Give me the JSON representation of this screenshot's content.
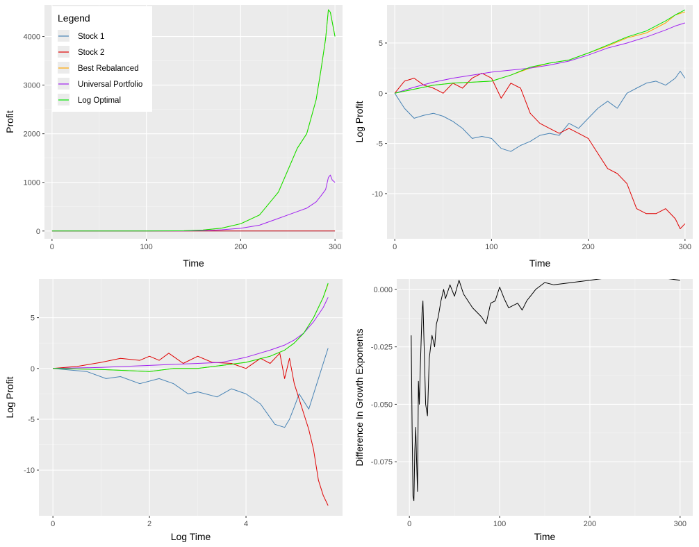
{
  "chart_data": [
    {
      "type": "line",
      "xlabel": "Time",
      "ylabel": "Profit",
      "xlim": [
        -8,
        308
      ],
      "ylim": [
        -160,
        4650
      ],
      "xticks": [
        0,
        100,
        200,
        300
      ],
      "yticks": [
        0,
        1000,
        2000,
        3000,
        4000
      ],
      "grid": true,
      "legend_title": "Legend",
      "legend_position": "top-left",
      "series": [
        {
          "name": "Stock 1",
          "color": "#4682b4",
          "x": [
            0,
            100,
            130,
            150,
            200,
            230,
            260,
            290,
            300
          ],
          "y": [
            0,
            0,
            0,
            0,
            0,
            0,
            0,
            0,
            0
          ]
        },
        {
          "name": "Stock 2",
          "color": "#e00000",
          "x": [
            0,
            100,
            150,
            200,
            250,
            300
          ],
          "y": [
            0,
            0,
            0,
            0,
            0,
            0
          ]
        },
        {
          "name": "Best Rebalanced",
          "color": "#ffa500",
          "x": [
            0,
            100,
            140,
            160,
            180,
            200,
            220,
            240,
            250,
            260,
            270,
            280,
            285,
            290,
            293,
            295,
            297,
            300
          ],
          "y": [
            0,
            0,
            5,
            20,
            60,
            150,
            330,
            800,
            1250,
            1700,
            2000,
            2700,
            3300,
            3950,
            4550,
            4500,
            4300,
            4000
          ]
        },
        {
          "name": "Universal Portfolio",
          "color": "#a020f0",
          "x": [
            0,
            100,
            140,
            160,
            180,
            200,
            220,
            240,
            250,
            260,
            270,
            280,
            285,
            290,
            293,
            295,
            297,
            300
          ],
          "y": [
            0,
            0,
            2,
            8,
            25,
            55,
            120,
            260,
            330,
            400,
            470,
            600,
            720,
            850,
            1100,
            1150,
            1050,
            1000
          ]
        },
        {
          "name": "Log Optimal",
          "color": "#00e600",
          "x": [
            0,
            100,
            140,
            160,
            180,
            200,
            220,
            240,
            250,
            260,
            270,
            280,
            285,
            290,
            293,
            295,
            297,
            300
          ],
          "y": [
            0,
            0,
            5,
            20,
            60,
            150,
            330,
            800,
            1250,
            1700,
            2000,
            2700,
            3300,
            3950,
            4550,
            4500,
            4300,
            4000
          ]
        }
      ]
    },
    {
      "type": "line",
      "xlabel": "Time",
      "ylabel": "Log Profit",
      "xlim": [
        -8,
        308
      ],
      "ylim": [
        -14.5,
        8.8
      ],
      "xticks": [
        0,
        100,
        200,
        300
      ],
      "yticks": [
        -10,
        -5,
        0,
        5
      ],
      "grid": true,
      "series": [
        {
          "color": "#4682b4",
          "x": [
            0,
            10,
            20,
            30,
            40,
            50,
            60,
            70,
            80,
            90,
            100,
            110,
            120,
            130,
            140,
            150,
            160,
            170,
            180,
            190,
            200,
            210,
            220,
            230,
            240,
            250,
            260,
            270,
            280,
            290,
            295,
            300
          ],
          "y": [
            0,
            -1.5,
            -2.5,
            -2.2,
            -2,
            -2.3,
            -2.8,
            -3.5,
            -4.5,
            -4.3,
            -4.5,
            -5.5,
            -5.8,
            -5.2,
            -4.8,
            -4.2,
            -4,
            -4.2,
            -3,
            -3.5,
            -2.5,
            -1.5,
            -0.8,
            -1.5,
            0,
            0.5,
            1,
            1.2,
            0.8,
            1.5,
            2.2,
            1.5
          ]
        },
        {
          "color": "#e00000",
          "x": [
            0,
            10,
            20,
            30,
            40,
            50,
            60,
            70,
            80,
            90,
            100,
            110,
            120,
            130,
            140,
            150,
            160,
            170,
            180,
            190,
            200,
            210,
            220,
            230,
            240,
            250,
            260,
            270,
            280,
            290,
            295,
            300
          ],
          "y": [
            0,
            1.2,
            1.5,
            0.8,
            0.5,
            0,
            1,
            0.5,
            1.5,
            2,
            1.5,
            -0.5,
            1,
            0.5,
            -2,
            -3,
            -3.5,
            -4,
            -3.5,
            -4,
            -4.5,
            -6,
            -7.5,
            -8,
            -9,
            -11.5,
            -12,
            -12,
            -11.5,
            -12.5,
            -13.5,
            -13
          ]
        },
        {
          "color": "#ffa500",
          "x": [
            0,
            20,
            40,
            60,
            80,
            100,
            120,
            140,
            160,
            180,
            200,
            220,
            240,
            260,
            280,
            290,
            300
          ],
          "y": [
            0,
            0.4,
            0.8,
            1,
            1.1,
            1.2,
            1.8,
            2.5,
            3,
            3.3,
            4,
            4.7,
            5.5,
            6,
            7,
            7.8,
            8.1
          ]
        },
        {
          "color": "#a020f0",
          "x": [
            0,
            20,
            40,
            60,
            80,
            100,
            120,
            140,
            160,
            180,
            200,
            220,
            240,
            260,
            280,
            290,
            300
          ],
          "y": [
            0,
            0.6,
            1.1,
            1.5,
            1.8,
            2.1,
            2.3,
            2.5,
            2.8,
            3.2,
            3.8,
            4.5,
            5,
            5.6,
            6.3,
            6.7,
            7
          ]
        },
        {
          "color": "#00e600",
          "x": [
            0,
            20,
            40,
            60,
            80,
            100,
            120,
            140,
            160,
            180,
            200,
            220,
            240,
            260,
            280,
            290,
            300
          ],
          "y": [
            0,
            0.4,
            0.8,
            1,
            1.1,
            1.2,
            1.8,
            2.6,
            3,
            3.3,
            4,
            4.8,
            5.6,
            6.2,
            7.2,
            7.8,
            8.3
          ]
        }
      ]
    },
    {
      "type": "line",
      "xlabel": "Log Time",
      "ylabel": "Log Profit",
      "xlim": [
        -0.29,
        6.0
      ],
      "ylim": [
        -14.5,
        8.8
      ],
      "xticks": [
        0,
        2,
        4
      ],
      "yticks": [
        -10,
        -5,
        0,
        5
      ],
      "grid": true,
      "series": [
        {
          "color": "#4682b4",
          "x": [
            0,
            0.7,
            1.1,
            1.4,
            1.8,
            2.2,
            2.5,
            2.8,
            3,
            3.4,
            3.7,
            4,
            4.3,
            4.6,
            4.8,
            4.9,
            5,
            5.1,
            5.3,
            5.5,
            5.6,
            5.7
          ],
          "y": [
            0,
            -0.3,
            -1,
            -0.8,
            -1.5,
            -1,
            -1.5,
            -2.5,
            -2.3,
            -2.8,
            -2,
            -2.5,
            -3.5,
            -5.5,
            -5.8,
            -5,
            -3.8,
            -2.5,
            -4,
            -1,
            0.5,
            2
          ]
        },
        {
          "color": "#e00000",
          "x": [
            0,
            0.5,
            1,
            1.4,
            1.8,
            2,
            2.2,
            2.4,
            2.7,
            3,
            3.3,
            3.7,
            4,
            4.3,
            4.5,
            4.7,
            4.8,
            4.9,
            5,
            5.1,
            5.2,
            5.3,
            5.4,
            5.5,
            5.6,
            5.7
          ],
          "y": [
            0,
            0.2,
            0.6,
            1,
            0.8,
            1.2,
            0.8,
            1.5,
            0.5,
            1.2,
            0.6,
            0.5,
            0,
            1,
            0.5,
            1.5,
            -1,
            1,
            -1.5,
            -3,
            -4.5,
            -6,
            -8,
            -11,
            -12.5,
            -13.5
          ]
        },
        {
          "color": "#ffa500",
          "x": [
            0,
            1,
            2,
            2.5,
            3,
            3.5,
            4,
            4.5,
            4.8,
            5,
            5.2,
            5.4,
            5.6,
            5.7
          ],
          "y": [
            0,
            -0.1,
            -0.3,
            0,
            0,
            0.3,
            0.6,
            1.2,
            1.8,
            2.5,
            3.5,
            5,
            7,
            8.3
          ]
        },
        {
          "color": "#a020f0",
          "x": [
            0,
            1,
            2,
            2.5,
            3,
            3.5,
            4,
            4.5,
            4.8,
            5,
            5.2,
            5.4,
            5.6,
            5.7
          ],
          "y": [
            0,
            0.1,
            0.3,
            0.4,
            0.5,
            0.6,
            1.1,
            1.8,
            2.3,
            2.8,
            3.5,
            4.6,
            6,
            7
          ]
        },
        {
          "color": "#00e600",
          "x": [
            0,
            1,
            2,
            2.5,
            3,
            3.5,
            4,
            4.5,
            4.8,
            5,
            5.2,
            5.4,
            5.6,
            5.7
          ],
          "y": [
            0,
            -0.1,
            -0.3,
            0,
            0,
            0.3,
            0.6,
            1.2,
            1.8,
            2.5,
            3.5,
            5,
            7,
            8.4
          ]
        }
      ]
    },
    {
      "type": "line",
      "xlabel": "Time",
      "ylabel": "Difference In Growth Exponents",
      "xlim": [
        -14,
        314
      ],
      "ylim": [
        -0.0985,
        0.0045
      ],
      "xticks": [
        0,
        100,
        200,
        300
      ],
      "yticks": [
        -0.075,
        -0.05,
        -0.025,
        0.0
      ],
      "ytick_labels": [
        "-0.075",
        "-0.050",
        "-0.025",
        "0.000"
      ],
      "grid": true,
      "series": [
        {
          "color": "#000000",
          "x": [
            2,
            3,
            4,
            5,
            6,
            7,
            8,
            9,
            10,
            11,
            12,
            14,
            15,
            16,
            18,
            20,
            22,
            25,
            28,
            30,
            32,
            35,
            38,
            40,
            45,
            50,
            55,
            60,
            65,
            70,
            75,
            80,
            85,
            90,
            95,
            100,
            105,
            110,
            115,
            120,
            125,
            130,
            140,
            150,
            160,
            180,
            200,
            220,
            250,
            280,
            300
          ],
          "y": [
            -0.02,
            -0.06,
            -0.09,
            -0.092,
            -0.07,
            -0.06,
            -0.075,
            -0.088,
            -0.04,
            -0.05,
            -0.035,
            -0.01,
            -0.005,
            -0.02,
            -0.05,
            -0.055,
            -0.03,
            -0.02,
            -0.025,
            -0.015,
            -0.012,
            -0.005,
            0,
            -0.004,
            0.002,
            -0.003,
            0.004,
            -0.002,
            -0.005,
            -0.008,
            -0.01,
            -0.012,
            -0.015,
            -0.006,
            -0.005,
            0.001,
            -0.004,
            -0.008,
            -0.007,
            -0.006,
            -0.009,
            -0.005,
            0,
            0.003,
            0.002,
            0.003,
            0.004,
            0.005,
            0.005,
            0.005,
            0.004
          ]
        }
      ]
    }
  ]
}
